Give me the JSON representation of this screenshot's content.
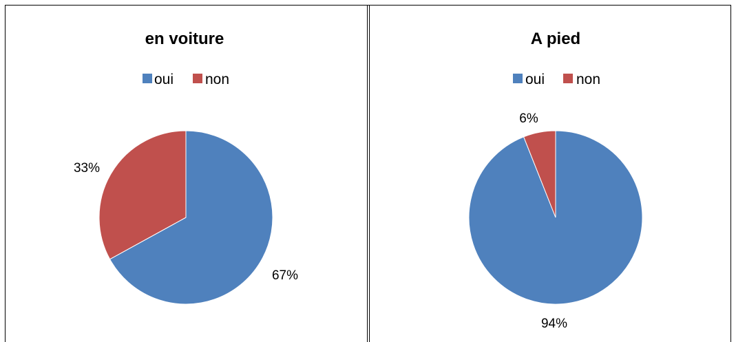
{
  "chart_data": [
    {
      "type": "pie",
      "title": "en voiture",
      "categories": [
        "oui",
        "non"
      ],
      "values": [
        67,
        33
      ],
      "labels": [
        "67%",
        "33%"
      ],
      "colors": [
        "#4F81BD",
        "#C0504D"
      ],
      "legend_position": "top"
    },
    {
      "type": "pie",
      "title": "A pied",
      "categories": [
        "oui",
        "non"
      ],
      "values": [
        94,
        6
      ],
      "labels": [
        "94%",
        "6%"
      ],
      "colors": [
        "#4F81BD",
        "#C0504D"
      ],
      "legend_position": "top"
    }
  ]
}
